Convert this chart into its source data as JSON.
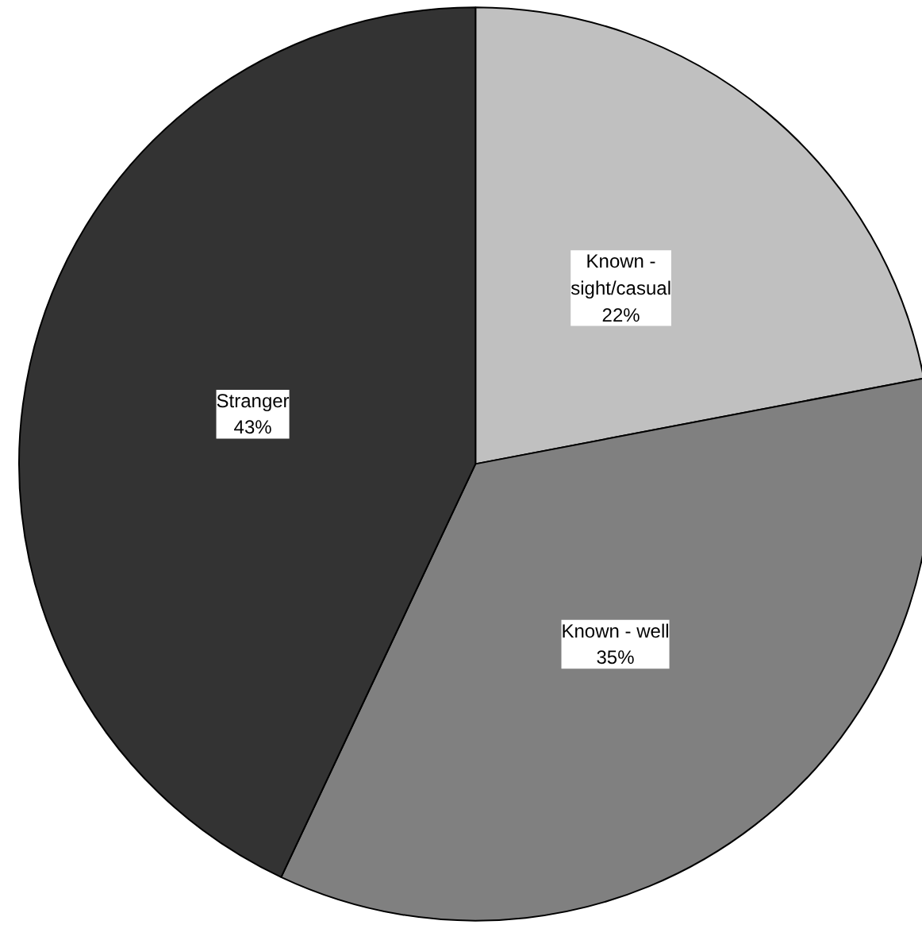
{
  "chart_data": {
    "type": "pie",
    "categories": [
      "Known - sight/casual",
      "Known - well",
      "Stranger"
    ],
    "values": [
      22,
      35,
      43
    ],
    "colors": [
      "#c0c0c0",
      "#808080",
      "#333333"
    ],
    "value_labels": [
      "22%",
      "35%",
      "43%"
    ]
  }
}
